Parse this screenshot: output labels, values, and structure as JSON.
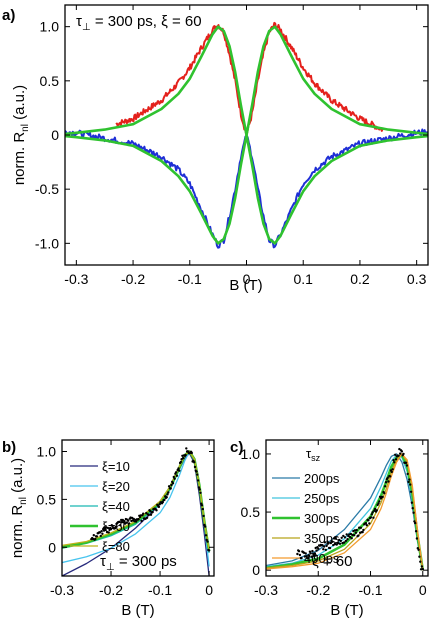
{
  "chart_data": [
    {
      "panel": "a)",
      "type": "line",
      "annotation": "τ⊥ = 300 ps, ξ = 60",
      "xlabel": "B (T)",
      "ylabel": "norm. R_nl (a.u.)",
      "xlim": [
        -0.32,
        0.32
      ],
      "ylim": [
        -1.2,
        1.2
      ],
      "xticks": [
        -0.3,
        -0.2,
        -0.1,
        0,
        0.1,
        0.2,
        0.3
      ],
      "xtick_labels": [
        "-0.3",
        "-0.2",
        "-0.1",
        "0",
        "0.1",
        "0.2",
        "0.3"
      ],
      "yticks": [
        -1.0,
        -0.5,
        0,
        0.5,
        1.0
      ],
      "ytick_labels": [
        "-1.0",
        "-0.5",
        "0",
        "0.5",
        "1.0"
      ],
      "series": [
        {
          "color": "#e4211c",
          "style": "noisy",
          "x": [
            -0.23,
            -0.2,
            -0.15,
            -0.12,
            -0.1,
            -0.08,
            -0.06,
            -0.05,
            -0.04,
            -0.03,
            -0.02,
            -0.01,
            0,
            0.01,
            0.02,
            0.03,
            0.04,
            0.05,
            0.06,
            0.08,
            0.1,
            0.12,
            0.15,
            0.2,
            0.24
          ],
          "y": [
            0.1,
            0.15,
            0.32,
            0.48,
            0.62,
            0.8,
            0.97,
            1.02,
            0.95,
            0.75,
            0.5,
            0.2,
            0,
            0.2,
            0.5,
            0.75,
            0.95,
            1.02,
            0.97,
            0.8,
            0.62,
            0.48,
            0.32,
            0.15,
            0.05
          ]
        },
        {
          "color": "#1f2fd6",
          "style": "noisy",
          "x": [
            -0.32,
            -0.3,
            -0.25,
            -0.2,
            -0.15,
            -0.12,
            -0.1,
            -0.08,
            -0.06,
            -0.05,
            -0.04,
            -0.03,
            -0.02,
            -0.01,
            0,
            0.01,
            0.02,
            0.03,
            0.04,
            0.05,
            0.06,
            0.08,
            0.1,
            0.12,
            0.15,
            0.2,
            0.25,
            0.3,
            0.32
          ],
          "y": [
            0.03,
            0.02,
            -0.03,
            -0.08,
            -0.2,
            -0.32,
            -0.45,
            -0.68,
            -0.92,
            -1.02,
            -0.97,
            -0.75,
            -0.5,
            -0.2,
            0,
            -0.2,
            -0.5,
            -0.75,
            -0.97,
            -1.02,
            -0.92,
            -0.68,
            -0.45,
            -0.32,
            -0.2,
            -0.08,
            -0.03,
            0.02,
            0.03
          ]
        },
        {
          "color": "#2fc22f",
          "style": "smooth",
          "x": [
            -0.32,
            -0.3,
            -0.25,
            -0.2,
            -0.15,
            -0.12,
            -0.1,
            -0.08,
            -0.06,
            -0.05,
            -0.04,
            -0.03,
            -0.02,
            -0.01,
            0,
            0.01,
            0.02,
            0.03,
            0.04,
            0.05,
            0.06,
            0.08,
            0.1,
            0.12,
            0.15,
            0.2,
            0.25,
            0.3,
            0.32
          ],
          "y": [
            0.01,
            0.02,
            0.05,
            0.1,
            0.24,
            0.38,
            0.52,
            0.72,
            0.93,
            1.0,
            0.96,
            0.82,
            0.58,
            0.28,
            0,
            0.28,
            0.58,
            0.82,
            0.96,
            1.0,
            0.93,
            0.72,
            0.52,
            0.38,
            0.24,
            0.1,
            0.05,
            0.02,
            0.01
          ]
        },
        {
          "color": "#2fc22f",
          "style": "smooth",
          "x": [
            -0.32,
            -0.3,
            -0.25,
            -0.2,
            -0.15,
            -0.12,
            -0.1,
            -0.08,
            -0.06,
            -0.05,
            -0.04,
            -0.03,
            -0.02,
            -0.01,
            0,
            0.01,
            0.02,
            0.03,
            0.04,
            0.05,
            0.06,
            0.08,
            0.1,
            0.12,
            0.15,
            0.2,
            0.25,
            0.3,
            0.32
          ],
          "y": [
            -0.01,
            -0.02,
            -0.05,
            -0.1,
            -0.24,
            -0.38,
            -0.52,
            -0.72,
            -0.93,
            -1.0,
            -0.96,
            -0.82,
            -0.58,
            -0.28,
            0,
            -0.28,
            -0.58,
            -0.82,
            -0.96,
            -1.0,
            -0.93,
            -0.72,
            -0.52,
            -0.38,
            -0.24,
            -0.1,
            -0.05,
            -0.02,
            -0.01
          ]
        }
      ]
    },
    {
      "panel": "b)",
      "type": "line",
      "annotation": "τ⊥ = 300 ps",
      "xlabel": "B (T)",
      "ylabel": "norm. R_nl (a.u.)",
      "xlim": [
        -0.3,
        0.01
      ],
      "ylim": [
        -0.3,
        1.12
      ],
      "xticks": [
        -0.3,
        -0.2,
        -0.1,
        0
      ],
      "xtick_labels": [
        "-0.3",
        "-0.2",
        "-0.1",
        "0"
      ],
      "yticks": [
        0,
        0.5,
        1.0
      ],
      "ytick_labels": [
        "0",
        "0.5",
        "1.0"
      ],
      "series": [
        {
          "name": "ξ=10",
          "color": "#26297c",
          "x": [
            -0.3,
            -0.25,
            -0.2,
            -0.15,
            -0.1,
            -0.08,
            -0.06,
            -0.05,
            -0.04,
            -0.03,
            -0.02,
            -0.01,
            0
          ],
          "y": [
            -0.3,
            -0.17,
            -0.01,
            0.2,
            0.45,
            0.6,
            0.82,
            0.93,
            0.98,
            0.88,
            0.55,
            0.15,
            -0.3
          ]
        },
        {
          "name": "ξ=20",
          "color": "#47c4ee",
          "x": [
            -0.3,
            -0.25,
            -0.2,
            -0.15,
            -0.1,
            -0.08,
            -0.06,
            -0.05,
            -0.04,
            -0.03,
            -0.02,
            -0.01,
            0
          ],
          "y": [
            -0.16,
            -0.1,
            -0.01,
            0.14,
            0.36,
            0.52,
            0.76,
            0.9,
            1.0,
            0.92,
            0.62,
            0.25,
            -0.2
          ]
        },
        {
          "name": "ξ=40",
          "color": "#1ab8b2",
          "x": [
            -0.3,
            -0.25,
            -0.2,
            -0.15,
            -0.1,
            -0.08,
            -0.06,
            -0.05,
            -0.04,
            -0.03,
            -0.02,
            -0.01,
            0
          ],
          "y": [
            -0.01,
            0.04,
            0.12,
            0.24,
            0.45,
            0.6,
            0.82,
            0.95,
            1.0,
            0.92,
            0.64,
            0.28,
            -0.06
          ]
        },
        {
          "name": "ξ=60",
          "color": "#2fc22f",
          "x": [
            -0.3,
            -0.25,
            -0.2,
            -0.15,
            -0.1,
            -0.08,
            -0.06,
            -0.05,
            -0.04,
            -0.03,
            -0.02,
            -0.01,
            0
          ],
          "y": [
            0.0,
            0.05,
            0.14,
            0.26,
            0.47,
            0.62,
            0.84,
            0.96,
            1.0,
            0.92,
            0.65,
            0.28,
            -0.04
          ]
        },
        {
          "name": "ξ=80",
          "color": "#bfb21a",
          "x": [
            -0.3,
            -0.25,
            -0.2,
            -0.15,
            -0.1,
            -0.08,
            -0.06,
            -0.05,
            -0.04,
            -0.03,
            -0.02,
            -0.01,
            0
          ],
          "y": [
            0.02,
            0.06,
            0.15,
            0.27,
            0.48,
            0.63,
            0.85,
            0.96,
            1.0,
            0.92,
            0.65,
            0.28,
            -0.03
          ]
        },
        {
          "color": "#000000",
          "style": "dots",
          "x": [
            -0.24,
            -0.22,
            -0.2,
            -0.18,
            -0.16,
            -0.14,
            -0.12,
            -0.1,
            -0.09,
            -0.08,
            -0.07,
            -0.06,
            -0.055,
            -0.05,
            -0.045,
            -0.04,
            -0.035,
            -0.03,
            -0.025,
            -0.02,
            -0.015,
            -0.01,
            -0.005,
            0
          ],
          "y": [
            0.08,
            0.15,
            0.2,
            0.26,
            0.28,
            0.3,
            0.36,
            0.45,
            0.52,
            0.62,
            0.72,
            0.84,
            0.92,
            0.97,
            1.02,
            1.0,
            0.95,
            0.88,
            0.78,
            0.62,
            0.45,
            0.28,
            0.1,
            -0.05
          ]
        }
      ]
    },
    {
      "panel": "c)",
      "type": "line",
      "annotation": "ξ = 60",
      "legend_title": "τsz",
      "xlabel": "B (T)",
      "xlim": [
        -0.3,
        0.01
      ],
      "ylim": [
        -0.05,
        1.12
      ],
      "xticks": [
        -0.3,
        -0.2,
        -0.1,
        0
      ],
      "xtick_labels": [
        "-0.3",
        "-0.2",
        "-0.1",
        "0"
      ],
      "yticks": [
        0,
        0.5,
        1.0
      ],
      "ytick_labels": [
        "0",
        "0.5",
        "1.0"
      ],
      "series": [
        {
          "name": "200ps",
          "color": "#2a7aa6",
          "x": [
            -0.3,
            -0.25,
            -0.2,
            -0.15,
            -0.1,
            -0.08,
            -0.07,
            -0.06,
            -0.05,
            -0.04,
            -0.03,
            -0.02,
            -0.01,
            0
          ],
          "y": [
            0.04,
            0.08,
            0.17,
            0.35,
            0.62,
            0.8,
            0.9,
            0.98,
            1.0,
            0.93,
            0.78,
            0.55,
            0.25,
            0.0
          ]
        },
        {
          "name": "250ps",
          "color": "#40c4de",
          "x": [
            -0.3,
            -0.25,
            -0.2,
            -0.15,
            -0.1,
            -0.08,
            -0.07,
            -0.06,
            -0.05,
            -0.04,
            -0.03,
            -0.02,
            -0.01,
            0
          ],
          "y": [
            0.03,
            0.06,
            0.13,
            0.27,
            0.53,
            0.72,
            0.83,
            0.94,
            0.99,
            0.97,
            0.85,
            0.6,
            0.28,
            0.0
          ]
        },
        {
          "name": "300ps",
          "color": "#2fc22f",
          "x": [
            -0.3,
            -0.25,
            -0.2,
            -0.15,
            -0.1,
            -0.08,
            -0.07,
            -0.06,
            -0.05,
            -0.04,
            -0.03,
            -0.02,
            -0.01,
            0
          ],
          "y": [
            0.02,
            0.05,
            0.1,
            0.22,
            0.46,
            0.64,
            0.76,
            0.89,
            0.97,
            0.99,
            0.9,
            0.66,
            0.3,
            0.0
          ]
        },
        {
          "name": "350ps",
          "color": "#b8a31a",
          "x": [
            -0.3,
            -0.25,
            -0.2,
            -0.15,
            -0.1,
            -0.08,
            -0.07,
            -0.06,
            -0.05,
            -0.04,
            -0.03,
            -0.02,
            -0.01,
            0
          ],
          "y": [
            0.02,
            0.04,
            0.08,
            0.18,
            0.4,
            0.58,
            0.7,
            0.85,
            0.95,
            1.0,
            0.93,
            0.7,
            0.32,
            0.0
          ]
        },
        {
          "name": "400ps",
          "color": "#f39b2e",
          "x": [
            -0.3,
            -0.25,
            -0.2,
            -0.15,
            -0.1,
            -0.08,
            -0.07,
            -0.06,
            -0.05,
            -0.04,
            -0.03,
            -0.02,
            -0.01,
            0
          ],
          "y": [
            0.01,
            0.03,
            0.06,
            0.15,
            0.35,
            0.53,
            0.66,
            0.81,
            0.93,
            1.0,
            0.95,
            0.73,
            0.34,
            0.0
          ]
        },
        {
          "color": "#000000",
          "style": "dots",
          "x": [
            -0.24,
            -0.22,
            -0.2,
            -0.18,
            -0.16,
            -0.14,
            -0.12,
            -0.1,
            -0.09,
            -0.08,
            -0.07,
            -0.06,
            -0.055,
            -0.05,
            -0.045,
            -0.04,
            -0.035,
            -0.03,
            -0.025,
            -0.02,
            -0.015,
            -0.01,
            -0.005,
            0
          ],
          "y": [
            0.14,
            0.12,
            0.18,
            0.22,
            0.26,
            0.28,
            0.34,
            0.43,
            0.52,
            0.62,
            0.74,
            0.86,
            0.94,
            0.99,
            1.03,
            1.0,
            0.95,
            0.86,
            0.74,
            0.58,
            0.4,
            0.22,
            0.06,
            -0.01
          ]
        }
      ]
    }
  ]
}
